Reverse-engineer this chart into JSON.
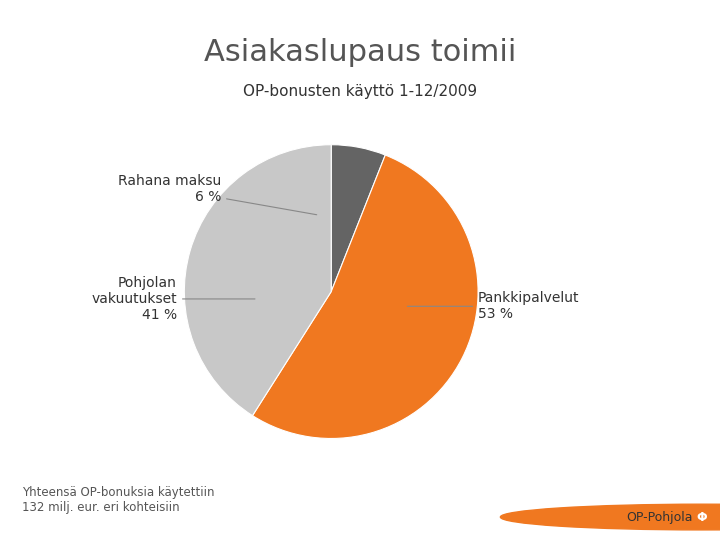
{
  "title": "Asiakaslupaus toimii",
  "subtitle": "OP-bonusten käyttö 1-12/2009",
  "slices": [
    6,
    53,
    41
  ],
  "colors": [
    "#646464",
    "#F07820",
    "#C8C8C8"
  ],
  "startangle": 90,
  "footnote": "Yhteensä OP-bonuksia käytettiin\n132 milj. eur. eri kohteisiin",
  "footer_bg": "#CCCCCC",
  "background": "#FFFFFF",
  "title_fontsize": 22,
  "subtitle_fontsize": 11,
  "label_fontsize": 10,
  "footnote_fontsize": 8.5,
  "title_color": "#555555",
  "label_color": "#333333"
}
